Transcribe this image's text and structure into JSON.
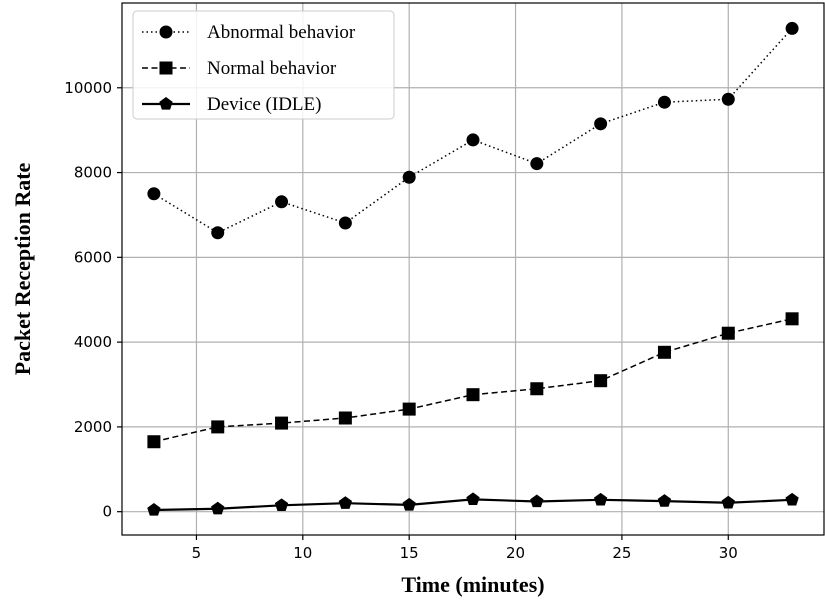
{
  "chart_data": {
    "type": "line",
    "title": "",
    "xlabel": "Time (minutes)",
    "ylabel": "Packet Reception Rate",
    "x": [
      3,
      6,
      9,
      12,
      15,
      18,
      21,
      24,
      27,
      30,
      33
    ],
    "xlim": [
      1.5,
      34.5
    ],
    "ylim": [
      -550,
      12000
    ],
    "x_ticks": [
      5,
      10,
      15,
      20,
      25,
      30
    ],
    "y_ticks": [
      0,
      2000,
      4000,
      6000,
      8000,
      10000
    ],
    "grid": true,
    "legend_position": "top-left",
    "series": [
      {
        "name": "Abnormal behavior",
        "line_style": "dotted",
        "marker": "circle",
        "color": "#000000",
        "values": [
          7500,
          6580,
          7310,
          6810,
          7890,
          8770,
          8210,
          9150,
          9660,
          9730,
          11400
        ]
      },
      {
        "name": "Normal behavior",
        "line_style": "dashed",
        "marker": "square",
        "color": "#000000",
        "values": [
          1650,
          2000,
          2090,
          2210,
          2420,
          2760,
          2900,
          3090,
          3760,
          4210,
          4550
        ]
      },
      {
        "name": "Device (IDLE)",
        "line_style": "solid",
        "marker": "pentagon",
        "color": "#000000",
        "values": [
          40,
          70,
          150,
          200,
          160,
          290,
          240,
          280,
          250,
          210,
          280
        ]
      }
    ]
  }
}
